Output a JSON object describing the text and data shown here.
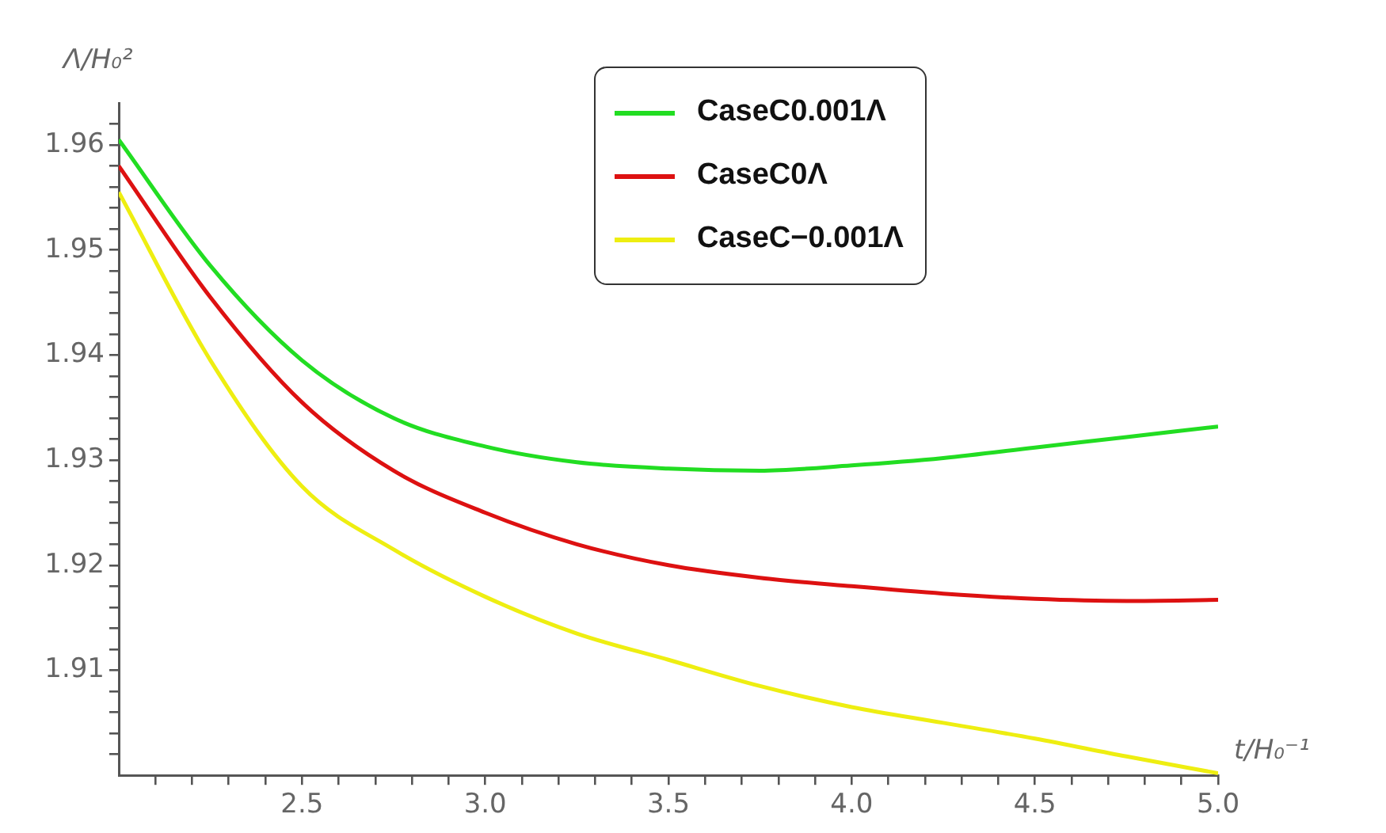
{
  "chart_data": {
    "type": "line",
    "xlabel": "t/H₀⁻¹",
    "ylabel": "Λ/H₀²",
    "x": [
      2.0,
      2.25,
      2.5,
      2.75,
      3.0,
      3.25,
      3.5,
      3.75,
      4.0,
      4.25,
      4.5,
      4.75,
      5.0
    ],
    "series": [
      {
        "name": "CaseC0.001Λ",
        "color": "#22dd22",
        "values": [
          1.9605,
          1.9485,
          1.9395,
          1.934,
          1.9313,
          1.9298,
          1.9292,
          1.929,
          1.9295,
          1.9302,
          1.9312,
          1.9322,
          1.9332
        ]
      },
      {
        "name": "CaseC0Λ",
        "color": "#dd1111",
        "values": [
          1.958,
          1.9455,
          1.9355,
          1.929,
          1.925,
          1.922,
          1.92,
          1.9188,
          1.918,
          1.9173,
          1.9168,
          1.9166,
          1.9167
        ]
      },
      {
        "name": "CaseC−0.001Λ",
        "color": "#eeee11",
        "values": [
          1.9555,
          1.9395,
          1.9275,
          1.9215,
          1.917,
          1.9135,
          1.911,
          1.9085,
          1.9065,
          1.905,
          1.9035,
          1.9018,
          1.9002
        ]
      }
    ],
    "xlim": [
      2.0,
      5.0
    ],
    "xticks": [
      {
        "value": 2.1,
        "label": null
      },
      {
        "value": 2.2,
        "label": null
      },
      {
        "value": 2.3,
        "label": null
      },
      {
        "value": 2.4,
        "label": null
      },
      {
        "value": 2.5,
        "label": "2.5"
      },
      {
        "value": 2.6,
        "label": null
      },
      {
        "value": 2.7,
        "label": null
      },
      {
        "value": 2.8,
        "label": null
      },
      {
        "value": 2.9,
        "label": null
      },
      {
        "value": 3.0,
        "label": "3.0"
      },
      {
        "value": 3.1,
        "label": null
      },
      {
        "value": 3.2,
        "label": null
      },
      {
        "value": 3.3,
        "label": null
      },
      {
        "value": 3.4,
        "label": null
      },
      {
        "value": 3.5,
        "label": "3.5"
      },
      {
        "value": 3.6,
        "label": null
      },
      {
        "value": 3.7,
        "label": null
      },
      {
        "value": 3.8,
        "label": null
      },
      {
        "value": 3.9,
        "label": null
      },
      {
        "value": 4.0,
        "label": "4.0"
      },
      {
        "value": 4.1,
        "label": null
      },
      {
        "value": 4.2,
        "label": null
      },
      {
        "value": 4.3,
        "label": null
      },
      {
        "value": 4.4,
        "label": null
      },
      {
        "value": 4.5,
        "label": "4.5"
      },
      {
        "value": 4.6,
        "label": null
      },
      {
        "value": 4.7,
        "label": null
      },
      {
        "value": 4.8,
        "label": null
      },
      {
        "value": 4.9,
        "label": null
      },
      {
        "value": 5.0,
        "label": "5.0"
      }
    ],
    "ylim": [
      1.9,
      1.964
    ],
    "yticks": [
      {
        "value": 1.902,
        "label": null
      },
      {
        "value": 1.904,
        "label": null
      },
      {
        "value": 1.906,
        "label": null
      },
      {
        "value": 1.908,
        "label": null
      },
      {
        "value": 1.91,
        "label": "1.91"
      },
      {
        "value": 1.912,
        "label": null
      },
      {
        "value": 1.914,
        "label": null
      },
      {
        "value": 1.916,
        "label": null
      },
      {
        "value": 1.918,
        "label": null
      },
      {
        "value": 1.92,
        "label": "1.92"
      },
      {
        "value": 1.922,
        "label": null
      },
      {
        "value": 1.924,
        "label": null
      },
      {
        "value": 1.926,
        "label": null
      },
      {
        "value": 1.928,
        "label": null
      },
      {
        "value": 1.93,
        "label": "1.93"
      },
      {
        "value": 1.932,
        "label": null
      },
      {
        "value": 1.934,
        "label": null
      },
      {
        "value": 1.936,
        "label": null
      },
      {
        "value": 1.938,
        "label": null
      },
      {
        "value": 1.94,
        "label": "1.94"
      },
      {
        "value": 1.942,
        "label": null
      },
      {
        "value": 1.944,
        "label": null
      },
      {
        "value": 1.946,
        "label": null
      },
      {
        "value": 1.948,
        "label": null
      },
      {
        "value": 1.95,
        "label": "1.95"
      },
      {
        "value": 1.952,
        "label": null
      },
      {
        "value": 1.954,
        "label": null
      },
      {
        "value": 1.956,
        "label": null
      },
      {
        "value": 1.958,
        "label": null
      },
      {
        "value": 1.96,
        "label": "1.96"
      },
      {
        "value": 1.962,
        "label": null
      }
    ],
    "grid": false,
    "legend": "top right",
    "marker": "none",
    "line_style": "solid"
  }
}
